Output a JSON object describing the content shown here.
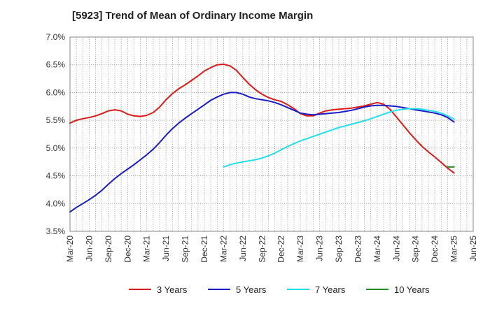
{
  "chart_data": {
    "type": "line",
    "title": "[5923]  Trend of Mean of Ordinary Income Margin",
    "xlabel": "",
    "ylabel": "",
    "ylim": [
      3.5,
      7.0
    ],
    "y_ticks": [
      "3.5%",
      "4.0%",
      "4.5%",
      "5.0%",
      "5.5%",
      "6.0%",
      "6.5%",
      "7.0%"
    ],
    "x_ticks": [
      "Mar-20",
      "Jun-20",
      "Sep-20",
      "Dec-20",
      "Mar-21",
      "Jun-21",
      "Sep-21",
      "Dec-21",
      "Mar-22",
      "Jun-22",
      "Sep-22",
      "Dec-22",
      "Mar-23",
      "Jun-23",
      "Sep-23",
      "Dec-23",
      "Mar-24",
      "Jun-24",
      "Sep-24",
      "Dec-24",
      "Mar-25",
      "Jun-25"
    ],
    "grid": true,
    "legend_position": "bottom",
    "series": [
      {
        "name": "3 Years",
        "color": "#dd1a1a",
        "x": [
          "Mar-20",
          "Apr-20",
          "May-20",
          "Jun-20",
          "Jul-20",
          "Aug-20",
          "Sep-20",
          "Oct-20",
          "Nov-20",
          "Dec-20",
          "Jan-21",
          "Feb-21",
          "Mar-21",
          "Apr-21",
          "May-21",
          "Jun-21",
          "Jul-21",
          "Aug-21",
          "Sep-21",
          "Oct-21",
          "Nov-21",
          "Dec-21",
          "Jan-22",
          "Feb-22",
          "Mar-22",
          "Apr-22",
          "May-22",
          "Jun-22",
          "Jul-22",
          "Aug-22",
          "Sep-22",
          "Oct-22",
          "Nov-22",
          "Dec-22",
          "Jan-23",
          "Feb-23",
          "Mar-23",
          "Apr-23",
          "May-23",
          "Jun-23",
          "Jul-23",
          "Aug-23",
          "Sep-23",
          "Oct-23",
          "Nov-23",
          "Dec-23",
          "Jan-24",
          "Feb-24",
          "Mar-24",
          "Apr-24",
          "May-24",
          "Jun-24",
          "Jul-24",
          "Aug-24",
          "Sep-24",
          "Oct-24",
          "Nov-24",
          "Dec-24",
          "Jan-25",
          "Feb-25",
          "Mar-25"
        ],
        "values": [
          5.45,
          5.5,
          5.53,
          5.55,
          5.58,
          5.62,
          5.67,
          5.69,
          5.67,
          5.61,
          5.58,
          5.57,
          5.59,
          5.64,
          5.74,
          5.87,
          5.98,
          6.07,
          6.14,
          6.22,
          6.3,
          6.39,
          6.45,
          6.5,
          6.51,
          6.48,
          6.4,
          6.27,
          6.15,
          6.05,
          5.97,
          5.91,
          5.87,
          5.84,
          5.78,
          5.71,
          5.62,
          5.58,
          5.58,
          5.63,
          5.67,
          5.69,
          5.7,
          5.71,
          5.72,
          5.74,
          5.76,
          5.79,
          5.82,
          5.79,
          5.7,
          5.56,
          5.42,
          5.28,
          5.15,
          5.03,
          4.93,
          4.84,
          4.74,
          4.64,
          4.55
        ]
      },
      {
        "name": "5 Years",
        "color": "#1a1ac8",
        "x": [
          "Mar-20",
          "Apr-20",
          "May-20",
          "Jun-20",
          "Jul-20",
          "Aug-20",
          "Sep-20",
          "Oct-20",
          "Nov-20",
          "Dec-20",
          "Jan-21",
          "Feb-21",
          "Mar-21",
          "Apr-21",
          "May-21",
          "Jun-21",
          "Jul-21",
          "Aug-21",
          "Sep-21",
          "Oct-21",
          "Nov-21",
          "Dec-21",
          "Jan-22",
          "Feb-22",
          "Mar-22",
          "Apr-22",
          "May-22",
          "Jun-22",
          "Jul-22",
          "Aug-22",
          "Sep-22",
          "Oct-22",
          "Nov-22",
          "Dec-22",
          "Jan-23",
          "Feb-23",
          "Mar-23",
          "Apr-23",
          "May-23",
          "Jun-23",
          "Jul-23",
          "Aug-23",
          "Sep-23",
          "Oct-23",
          "Nov-23",
          "Dec-23",
          "Jan-24",
          "Feb-24",
          "Mar-24",
          "Apr-24",
          "May-24",
          "Jun-24",
          "Jul-24",
          "Aug-24",
          "Sep-24",
          "Oct-24",
          "Nov-24",
          "Dec-24",
          "Jan-25",
          "Feb-25",
          "Mar-25"
        ],
        "values": [
          3.85,
          3.93,
          4.0,
          4.07,
          4.15,
          4.24,
          4.35,
          4.45,
          4.54,
          4.62,
          4.7,
          4.79,
          4.88,
          4.98,
          5.1,
          5.23,
          5.35,
          5.45,
          5.54,
          5.62,
          5.7,
          5.78,
          5.86,
          5.92,
          5.97,
          6.0,
          6.0,
          5.97,
          5.92,
          5.89,
          5.87,
          5.85,
          5.82,
          5.78,
          5.73,
          5.68,
          5.63,
          5.61,
          5.6,
          5.61,
          5.62,
          5.63,
          5.64,
          5.66,
          5.68,
          5.71,
          5.74,
          5.76,
          5.77,
          5.77,
          5.76,
          5.75,
          5.73,
          5.71,
          5.69,
          5.67,
          5.65,
          5.63,
          5.6,
          5.55,
          5.47
        ]
      },
      {
        "name": "7 Years",
        "color": "#22e0e8",
        "x": [
          "Mar-22",
          "Apr-22",
          "May-22",
          "Jun-22",
          "Jul-22",
          "Aug-22",
          "Sep-22",
          "Oct-22",
          "Nov-22",
          "Dec-22",
          "Jan-23",
          "Feb-23",
          "Mar-23",
          "Apr-23",
          "May-23",
          "Jun-23",
          "Jul-23",
          "Aug-23",
          "Sep-23",
          "Oct-23",
          "Nov-23",
          "Dec-23",
          "Jan-24",
          "Feb-24",
          "Mar-24",
          "Apr-24",
          "May-24",
          "Jun-24",
          "Jul-24",
          "Aug-24",
          "Sep-24",
          "Oct-24",
          "Nov-24",
          "Dec-24",
          "Jan-25",
          "Feb-25",
          "Mar-25"
        ],
        "values": [
          4.66,
          4.7,
          4.73,
          4.75,
          4.77,
          4.79,
          4.82,
          4.86,
          4.91,
          4.97,
          5.03,
          5.08,
          5.13,
          5.17,
          5.21,
          5.25,
          5.29,
          5.33,
          5.37,
          5.4,
          5.43,
          5.46,
          5.49,
          5.53,
          5.57,
          5.61,
          5.65,
          5.68,
          5.7,
          5.71,
          5.71,
          5.7,
          5.68,
          5.66,
          5.63,
          5.58,
          5.52
        ]
      },
      {
        "name": "10 Years",
        "color": "#2a8a2a",
        "x": [
          "Feb-25",
          "Mar-25"
        ],
        "values": [
          4.66,
          4.66
        ]
      }
    ]
  }
}
